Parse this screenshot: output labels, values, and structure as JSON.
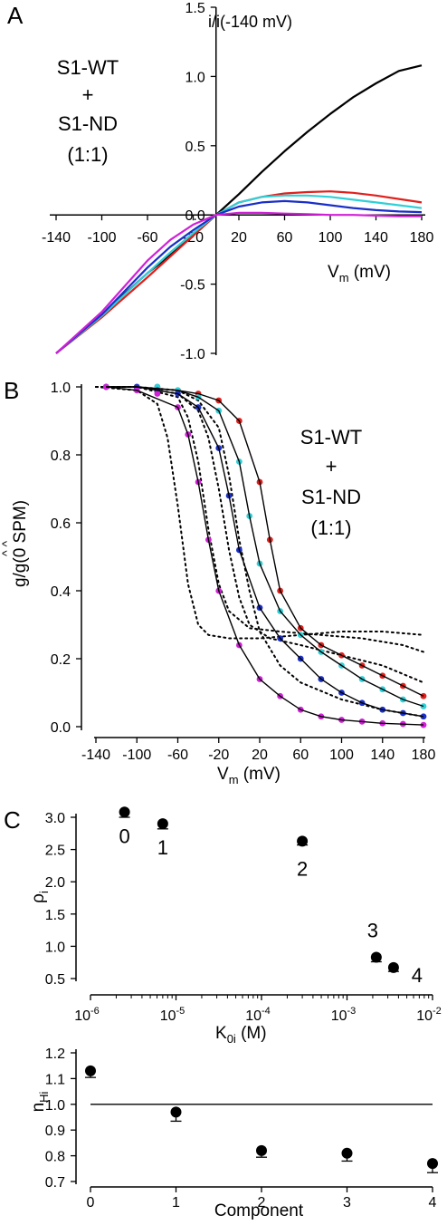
{
  "figure": {
    "panel_a": {
      "letter": "A",
      "ylabel": "i/i(-140 mV)",
      "xlabel_main": "V",
      "xlabel_sub": "m",
      "xlabel_unit": " (mV)",
      "annotation": [
        "S1-WT",
        "+",
        "S1-ND",
        "(1:1)"
      ]
    },
    "panel_b": {
      "letter": "B",
      "ylabel": "g/g(0 SPM)",
      "ylabel_hat": "^       ^",
      "xlabel_main": "V",
      "xlabel_sub": "m",
      "xlabel_unit": " (mV)",
      "annotation": [
        "S1-WT",
        "+",
        "S1-ND",
        "(1:1)"
      ]
    },
    "panel_c_top": {
      "letter": "C",
      "ylabel_main": "ρ",
      "ylabel_sub": "i",
      "xlabel_main": "K",
      "xlabel_sub": "0i",
      "xlabel_unit": " (M)",
      "point_labels": [
        "0",
        "1",
        "2",
        "3",
        "4"
      ]
    },
    "panel_c_bottom": {
      "ylabel_main": "n",
      "ylabel_sub": "Hi",
      "xlabel": "Component"
    }
  },
  "colors": {
    "black": "#000000",
    "red": "#e0201c",
    "cyan": "#2fd0d8",
    "blue": "#1a2fc8",
    "magenta": "#d020d8"
  },
  "chart_data": [
    {
      "id": "A",
      "type": "line",
      "title": "",
      "xlabel": "Vm (mV)",
      "ylabel": "i/i(-140 mV)",
      "xlim": [
        -140,
        180
      ],
      "ylim": [
        -1.0,
        1.5
      ],
      "xticks": [
        -140,
        -100,
        -60,
        -20,
        20,
        60,
        100,
        140,
        180
      ],
      "xtick_labels": [
        "-140",
        "-100",
        "-60",
        "-20",
        "20",
        "60",
        "100",
        "140",
        "180"
      ],
      "yticks": [
        -1.0,
        -0.5,
        0.0,
        0.5,
        1.0,
        1.5
      ],
      "ytick_labels": [
        "-1.0",
        "-0.5",
        "0.0",
        "0.5",
        "1.0",
        "1.5"
      ],
      "series": [
        {
          "color": "black",
          "x": [
            -140,
            -100,
            -60,
            -40,
            -20,
            0,
            20,
            40,
            60,
            80,
            100,
            120,
            140,
            160,
            180
          ],
          "y": [
            -1.0,
            -0.72,
            -0.42,
            -0.29,
            -0.15,
            0.0,
            0.15,
            0.31,
            0.46,
            0.6,
            0.73,
            0.85,
            0.95,
            1.04,
            1.08
          ]
        },
        {
          "color": "red",
          "x": [
            -140,
            -100,
            -60,
            -40,
            -20,
            0,
            20,
            40,
            60,
            80,
            100,
            120,
            140,
            160,
            180
          ],
          "y": [
            -1.0,
            -0.74,
            -0.45,
            -0.3,
            -0.15,
            0.0,
            0.09,
            0.13,
            0.155,
            0.165,
            0.17,
            0.16,
            0.14,
            0.115,
            0.09
          ]
        },
        {
          "color": "cyan",
          "x": [
            -140,
            -100,
            -60,
            -40,
            -20,
            0,
            20,
            40,
            60,
            80,
            100,
            120,
            140,
            160,
            180
          ],
          "y": [
            -1.0,
            -0.73,
            -0.42,
            -0.27,
            -0.13,
            0.0,
            0.09,
            0.13,
            0.14,
            0.14,
            0.13,
            0.11,
            0.09,
            0.07,
            0.05
          ]
        },
        {
          "color": "blue",
          "x": [
            -140,
            -100,
            -60,
            -40,
            -20,
            0,
            20,
            40,
            60,
            80,
            100,
            120,
            140,
            160,
            180
          ],
          "y": [
            -1.0,
            -0.72,
            -0.38,
            -0.23,
            -0.11,
            0.0,
            0.06,
            0.09,
            0.1,
            0.09,
            0.07,
            0.05,
            0.035,
            0.025,
            0.02
          ]
        },
        {
          "color": "magenta",
          "x": [
            -140,
            -100,
            -60,
            -40,
            -20,
            0,
            20,
            40,
            60,
            80,
            100,
            120,
            140,
            160,
            180
          ],
          "y": [
            -1.0,
            -0.7,
            -0.33,
            -0.18,
            -0.07,
            0.0,
            0.015,
            0.015,
            0.01,
            0.005,
            0.0,
            0.0,
            -0.005,
            -0.01,
            -0.01
          ]
        }
      ]
    },
    {
      "id": "B",
      "type": "scatter",
      "title": "",
      "xlabel": "Vm (mV)",
      "ylabel": "g/g(0 SPM)",
      "xlim": [
        -140,
        180
      ],
      "ylim": [
        0.0,
        1.0
      ],
      "xticks": [
        -140,
        -100,
        -60,
        -20,
        20,
        60,
        100,
        140,
        180
      ],
      "xtick_labels": [
        "-140",
        "-100",
        "-60",
        "-20",
        "20",
        "60",
        "100",
        "140",
        "180"
      ],
      "yticks": [
        0.0,
        0.2,
        0.4,
        0.6,
        0.8,
        1.0
      ],
      "ytick_labels": [
        "0.0",
        "0.2",
        "0.4",
        "0.6",
        "0.8",
        "1.0"
      ],
      "series": [
        {
          "color": "red",
          "x": [
            -130,
            -100,
            -80,
            -60,
            -40,
            -20,
            0,
            20,
            30,
            40,
            60,
            80,
            100,
            120,
            140,
            160,
            180
          ],
          "y": [
            1.0,
            1.0,
            1.0,
            0.99,
            0.98,
            0.96,
            0.9,
            0.72,
            0.55,
            0.4,
            0.29,
            0.24,
            0.21,
            0.18,
            0.15,
            0.12,
            0.09
          ]
        },
        {
          "color": "cyan",
          "x": [
            -130,
            -100,
            -80,
            -60,
            -40,
            -20,
            0,
            10,
            20,
            40,
            60,
            80,
            100,
            120,
            140,
            160,
            180
          ],
          "y": [
            1.0,
            1.0,
            1.0,
            0.99,
            0.97,
            0.93,
            0.78,
            0.62,
            0.48,
            0.34,
            0.27,
            0.22,
            0.18,
            0.14,
            0.11,
            0.08,
            0.06
          ]
        },
        {
          "color": "blue",
          "x": [
            -130,
            -100,
            -80,
            -60,
            -40,
            -20,
            -10,
            0,
            20,
            40,
            60,
            80,
            100,
            120,
            140,
            160,
            180
          ],
          "y": [
            1.0,
            1.0,
            0.99,
            0.98,
            0.94,
            0.82,
            0.68,
            0.52,
            0.35,
            0.26,
            0.2,
            0.14,
            0.1,
            0.07,
            0.05,
            0.04,
            0.03
          ]
        },
        {
          "color": "magenta",
          "x": [
            -130,
            -100,
            -80,
            -60,
            -50,
            -40,
            -30,
            -20,
            0,
            20,
            40,
            60,
            80,
            100,
            120,
            140,
            160,
            180
          ],
          "y": [
            1.0,
            0.99,
            0.98,
            0.94,
            0.86,
            0.72,
            0.55,
            0.4,
            0.24,
            0.14,
            0.09,
            0.05,
            0.03,
            0.02,
            0.015,
            0.01,
            0.008,
            0.005
          ]
        }
      ],
      "dotted_curves": [
        {
          "x": [
            -140,
            -100,
            -80,
            -70,
            -60,
            -50,
            -40,
            -30,
            -10,
            20,
            60,
            100,
            140,
            180
          ],
          "y": [
            1.0,
            0.99,
            0.95,
            0.85,
            0.65,
            0.42,
            0.3,
            0.27,
            0.26,
            0.26,
            0.27,
            0.28,
            0.28,
            0.27
          ]
        },
        {
          "x": [
            -140,
            -100,
            -60,
            -50,
            -40,
            -30,
            -20,
            -10,
            10,
            40,
            80,
            120,
            160,
            180
          ],
          "y": [
            1.0,
            1.0,
            0.97,
            0.91,
            0.78,
            0.58,
            0.42,
            0.34,
            0.29,
            0.28,
            0.27,
            0.26,
            0.24,
            0.22
          ]
        },
        {
          "x": [
            -140,
            -100,
            -60,
            -40,
            -30,
            -20,
            -10,
            0,
            10,
            30,
            60,
            100,
            140,
            180
          ],
          "y": [
            1.0,
            1.0,
            0.98,
            0.93,
            0.85,
            0.7,
            0.52,
            0.38,
            0.3,
            0.26,
            0.24,
            0.21,
            0.18,
            0.13
          ]
        },
        {
          "x": [
            -140,
            -100,
            -60,
            -40,
            -20,
            -10,
            0,
            10,
            20,
            40,
            60,
            100,
            140,
            180
          ],
          "y": [
            1.0,
            1.0,
            0.99,
            0.96,
            0.88,
            0.74,
            0.55,
            0.4,
            0.28,
            0.18,
            0.13,
            0.08,
            0.05,
            0.03
          ]
        }
      ],
      "fit_curves": [
        {
          "x": [
            -130,
            -100,
            -60,
            -40,
            -20,
            0,
            20,
            30,
            40,
            60,
            80,
            100,
            120,
            140,
            160,
            180
          ],
          "y": [
            1.0,
            1.0,
            0.99,
            0.98,
            0.96,
            0.9,
            0.72,
            0.55,
            0.4,
            0.29,
            0.24,
            0.21,
            0.18,
            0.15,
            0.12,
            0.09
          ]
        },
        {
          "x": [
            -130,
            -100,
            -60,
            -40,
            -20,
            0,
            10,
            20,
            40,
            60,
            80,
            100,
            120,
            140,
            160,
            180
          ],
          "y": [
            1.0,
            1.0,
            0.99,
            0.97,
            0.93,
            0.78,
            0.62,
            0.48,
            0.34,
            0.27,
            0.22,
            0.18,
            0.14,
            0.11,
            0.08,
            0.06
          ]
        },
        {
          "x": [
            -130,
            -100,
            -60,
            -40,
            -20,
            -10,
            0,
            20,
            40,
            60,
            80,
            100,
            120,
            140,
            160,
            180
          ],
          "y": [
            1.0,
            1.0,
            0.98,
            0.94,
            0.82,
            0.68,
            0.52,
            0.35,
            0.26,
            0.2,
            0.14,
            0.1,
            0.07,
            0.05,
            0.04,
            0.03
          ]
        },
        {
          "x": [
            -130,
            -100,
            -60,
            -50,
            -40,
            -30,
            -20,
            0,
            20,
            40,
            60,
            80,
            100,
            140,
            180
          ],
          "y": [
            1.0,
            0.99,
            0.94,
            0.86,
            0.72,
            0.55,
            0.4,
            0.24,
            0.14,
            0.09,
            0.05,
            0.03,
            0.02,
            0.01,
            0.005
          ]
        }
      ]
    },
    {
      "id": "C-top",
      "type": "scatter",
      "title": "",
      "xlabel": "K0i (M)",
      "ylabel": "ρi",
      "xscale": "log",
      "xlim": [
        1e-06,
        0.01
      ],
      "ylim": [
        0.5,
        3.0
      ],
      "xticks": [
        1e-06,
        1e-05,
        0.0001,
        0.001,
        0.01
      ],
      "xtick_base": [
        "10",
        "10",
        "10",
        "10",
        "10"
      ],
      "xtick_exp": [
        "-6",
        "-5",
        "-4",
        "-3",
        "-2"
      ],
      "yticks": [
        0.5,
        1.0,
        1.5,
        2.0,
        2.5,
        3.0
      ],
      "ytick_labels": [
        "0.5",
        "1.0",
        "1.5",
        "2.0",
        "2.5",
        "3.0"
      ],
      "points": [
        {
          "label": "0",
          "x": 2.5e-06,
          "y": 3.08,
          "err": 0.08
        },
        {
          "label": "1",
          "x": 7e-06,
          "y": 2.9,
          "err": 0.08
        },
        {
          "label": "2",
          "x": 0.0003,
          "y": 2.63,
          "err": 0.06
        },
        {
          "label": "3",
          "x": 0.0022,
          "y": 0.83,
          "err": 0.07
        },
        {
          "label": "4",
          "x": 0.0035,
          "y": 0.67,
          "err": 0.06
        }
      ]
    },
    {
      "id": "C-bottom",
      "type": "scatter",
      "title": "",
      "xlabel": "Component",
      "ylabel": "nHi",
      "xlim": [
        0,
        4
      ],
      "ylim": [
        0.7,
        1.2
      ],
      "xticks": [
        0,
        1,
        2,
        3,
        4
      ],
      "xtick_labels": [
        "0",
        "1",
        "2",
        "3",
        "4"
      ],
      "yticks": [
        0.7,
        0.8,
        0.9,
        1.0,
        1.1,
        1.2
      ],
      "ytick_labels": [
        "0.7",
        "0.8",
        "0.9",
        "1.0",
        "1.1",
        "1.2"
      ],
      "reference_line": 1.0,
      "points": [
        {
          "x": 0,
          "y": 1.13,
          "err": 0.015
        },
        {
          "x": 1,
          "y": 0.97,
          "err": 0.025
        },
        {
          "x": 2,
          "y": 0.82,
          "err": 0.015
        },
        {
          "x": 3,
          "y": 0.81,
          "err": 0.02
        },
        {
          "x": 4,
          "y": 0.77,
          "err": 0.025
        }
      ]
    }
  ]
}
